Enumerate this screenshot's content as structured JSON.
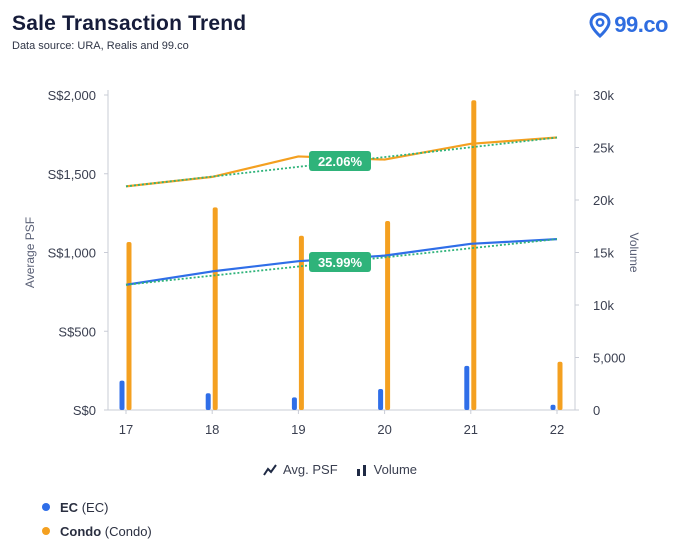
{
  "header": {
    "title": "Sale Transaction Trend",
    "subtitle": "Data source: URA, Realis and 99.co"
  },
  "logo": {
    "text": "99.co",
    "icon": "location-pin-icon"
  },
  "legend": {
    "line_label": "Avg. PSF",
    "bar_label": "Volume"
  },
  "series_legend": [
    {
      "code": "EC",
      "name": "(EC)",
      "color": "#2f6ee8"
    },
    {
      "code": "Condo",
      "name": "(Condo)",
      "color": "#f4a020"
    }
  ],
  "badges": [
    {
      "text": "22.06%",
      "color": "#2fb37a"
    },
    {
      "text": "35.99%",
      "color": "#2fb37a"
    }
  ],
  "chart_data": {
    "type": "bar+line",
    "categories": [
      "17",
      "18",
      "19",
      "20",
      "21",
      "22"
    ],
    "ylabel": "Average PSF",
    "y2label": "Volume",
    "ylim": [
      0,
      2000
    ],
    "y2lim": [
      0,
      30000
    ],
    "yticks": [
      "S$0",
      "S$500",
      "S$1,000",
      "S$1,500",
      "S$2,000"
    ],
    "y2ticks": [
      "0",
      "5,000",
      "10k",
      "15k",
      "20k",
      "25k",
      "30k"
    ],
    "lines": [
      {
        "name": "Condo",
        "color": "#f4a020",
        "values": [
          1420,
          1480,
          1610,
          1590,
          1690,
          1730
        ],
        "trend": [
          1420,
          1730
        ],
        "trend_color": "#2fb37a",
        "badge_index": 0
      },
      {
        "name": "EC",
        "color": "#2f6ee8",
        "values": [
          795,
          880,
          945,
          980,
          1055,
          1085
        ],
        "trend": [
          795,
          1085
        ],
        "trend_color": "#2fb37a",
        "badge_index": 1
      }
    ],
    "bars": [
      {
        "name": "EC",
        "color": "#2f6ee8",
        "values": [
          2800,
          1600,
          1200,
          2000,
          4200,
          500
        ]
      },
      {
        "name": "Condo",
        "color": "#f4a020",
        "values": [
          16000,
          19300,
          16600,
          18000,
          29500,
          4600
        ]
      }
    ],
    "grid": false
  }
}
